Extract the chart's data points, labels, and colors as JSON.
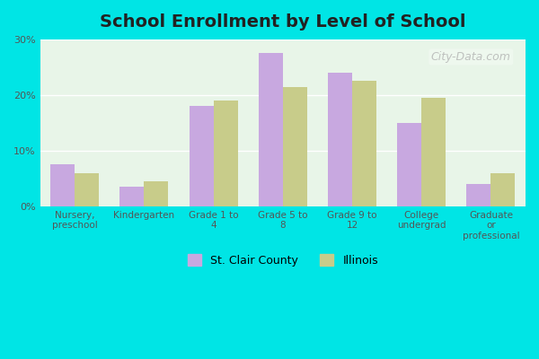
{
  "title": "School Enrollment by Level of School",
  "categories": [
    "Nursery,\npreschool",
    "Kindergarten",
    "Grade 1 to\n4",
    "Grade 5 to\n8",
    "Grade 9 to\n12",
    "College\nundergrad",
    "Graduate\nor\nprofessional"
  ],
  "st_clair_values": [
    7.5,
    3.5,
    18.0,
    27.5,
    24.0,
    15.0,
    4.0
  ],
  "illinois_values": [
    6.0,
    4.5,
    19.0,
    21.5,
    22.5,
    19.5,
    6.0
  ],
  "st_clair_color": "#c8a8e0",
  "illinois_color": "#c8cc8a",
  "ylim": [
    0,
    30
  ],
  "yticks": [
    0,
    10,
    20,
    30
  ],
  "ytick_labels": [
    "0%",
    "10%",
    "20%",
    "30%"
  ],
  "legend_labels": [
    "St. Clair County",
    "Illinois"
  ],
  "bg_outer": "#00e5e5",
  "bg_plot": "#e8f5e8",
  "bg_gradient_top": "#f0f8f0",
  "bg_gradient_bottom": "#e0f0e0",
  "bar_width": 0.35,
  "watermark": "City-Data.com"
}
